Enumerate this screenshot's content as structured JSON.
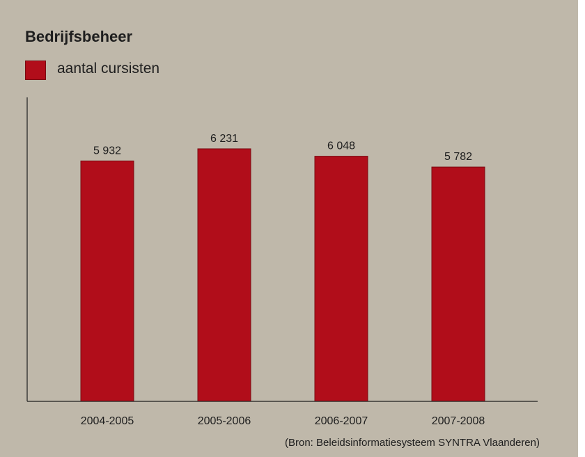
{
  "chart_data": {
    "type": "bar",
    "title": "Bedrijfsbeheer",
    "categories": [
      "2004-2005",
      "2005-2006",
      "2006-2007",
      "2007-2008"
    ],
    "series": [
      {
        "name": "aantal cursisten",
        "values": [
          5932,
          6231,
          6048,
          5782
        ],
        "value_labels": [
          "5 932",
          "6 231",
          "6 048",
          "5 782"
        ],
        "color": "#b10d1a"
      }
    ],
    "xlabel": "",
    "ylabel": "",
    "ylim": [
      0,
      7500
    ],
    "legend_position": "top-left",
    "grid": false
  },
  "source_note": "(Bron: Beleidsinformatiesysteem SYNTRA Vlaanderen)"
}
